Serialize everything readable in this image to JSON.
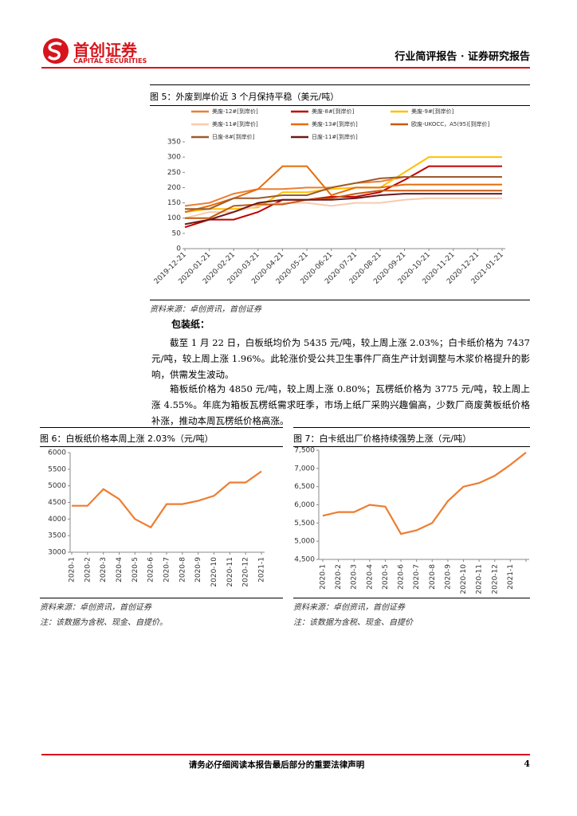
{
  "header": {
    "company": "首创证券",
    "company_en": "CAPITAL SECURITIES",
    "report_type": "行业简评报告 · 证券研究报告"
  },
  "body": {
    "heading": "包装纸：",
    "paragraphs": [
      "截至 1 月 22 日，白板纸均价为 5435 元/吨，较上周上涨 2.03%；白卡纸价格为 7437 元/吨，较上周上涨 1.96%。此轮涨价受公共卫生事件厂商生产计划调整与木浆价格提升的影响，供需发生波动。",
      "箱板纸价格为 4850 元/吨，较上周上涨 0.80%；瓦楞纸价格为 3775 元/吨，较上周上涨 4.55%。年底为箱板瓦楞纸需求旺季，市场上纸厂采购兴趣偏高，少数厂商废黄板纸价格补涨，推动本周瓦楞纸价格高涨。"
    ]
  },
  "footer": {
    "disclaimer": "请务必仔细阅读本报告最后部分的重要法律声明",
    "page": 4
  },
  "chart_data": [
    {
      "type": "line",
      "title": "图 5：外废到岸价近 3 个月保持平稳（美元/吨）",
      "source": "资料来源：卓创资讯，首创证券",
      "x": [
        "2019-12-21",
        "2020-01-21",
        "2020-02-21",
        "2020-03-21",
        "2020-04-21",
        "2020-05-21",
        "2020-06-21",
        "2020-07-21",
        "2020-08-21",
        "2020-09-21",
        "2020-10-21",
        "2020-11-21",
        "2020-12-21",
        "2021-01-21"
      ],
      "ylim": [
        0,
        350
      ],
      "yticks": [
        0,
        50,
        100,
        150,
        200,
        250,
        300,
        350
      ],
      "series": [
        {
          "name": "美废-12#[到岸价]",
          "color": "#ED7D31",
          "values": [
            140,
            150,
            180,
            195,
            195,
            200,
            200,
            215,
            220,
            235,
            235,
            235,
            235,
            235
          ]
        },
        {
          "name": "美废-8#[到岸价]",
          "color": "#C00000",
          "values": [
            70,
            95,
            95,
            120,
            160,
            160,
            170,
            170,
            185,
            225,
            270,
            270,
            270,
            270
          ]
        },
        {
          "name": "美废-9#[到岸价]",
          "color": "#FFC000",
          "values": [
            120,
            130,
            130,
            135,
            185,
            185,
            195,
            200,
            200,
            250,
            300,
            300,
            300,
            300
          ]
        },
        {
          "name": "美废-11#[到岸价]",
          "color": "#F8CBAD",
          "values": [
            100,
            120,
            120,
            140,
            150,
            150,
            140,
            150,
            150,
            160,
            165,
            165,
            165,
            165
          ]
        },
        {
          "name": "美废-13#[到岸价]",
          "color": "#E46C0A",
          "values": [
            120,
            140,
            165,
            195,
            270,
            270,
            175,
            200,
            200,
            210,
            210,
            210,
            210,
            210
          ]
        },
        {
          "name": "欧废-UKOCC，A5(95)[到岸价]",
          "color": "#C55A11",
          "values": [
            100,
            100,
            140,
            145,
            145,
            160,
            165,
            180,
            190,
            190,
            190,
            190,
            190,
            190
          ]
        },
        {
          "name": "日废-8#[到岸价]",
          "color": "#9C5B2C",
          "values": [
            130,
            130,
            165,
            165,
            175,
            175,
            200,
            215,
            230,
            235,
            235,
            235,
            235,
            235
          ]
        },
        {
          "name": "日废-11#[到岸价]",
          "color": "#6B1A1A",
          "values": [
            80,
            95,
            120,
            150,
            160,
            160,
            160,
            165,
            175,
            180,
            180,
            180,
            180,
            180
          ]
        }
      ]
    },
    {
      "type": "line",
      "title": "图 6：白板纸价格本周上涨 2.03%（元/吨）",
      "source": "资料来源：卓创资讯，首创证券",
      "note": "注：该数据为含税、现金、自提价。",
      "categories": [
        "2020-1",
        "2020-2",
        "2020-3",
        "2020-4",
        "2020-5",
        "2020-6",
        "2020-7",
        "2020-8",
        "2020-9",
        "2020-10",
        "2020-11",
        "2020-12",
        "2021-1"
      ],
      "ylim": [
        3000,
        6000
      ],
      "yticks": [
        3000,
        3500,
        4000,
        4500,
        5000,
        5500,
        6000
      ],
      "series": [
        {
          "name": "白板纸",
          "color": "#ED7D31",
          "values": [
            4400,
            4400,
            4900,
            4600,
            4000,
            3750,
            4450,
            4450,
            4550,
            4700,
            5100,
            5100,
            5435
          ]
        }
      ]
    },
    {
      "type": "line",
      "title": "图 7：白卡纸出厂价格持续强势上涨（元/吨）",
      "source": "资料来源：卓创资讯，首创证券",
      "note": "注：该数据为含税、现金、自提价",
      "categories": [
        "2020-1",
        "2020-2",
        "2020-3",
        "2020-4",
        "2020-5",
        "2020-6",
        "2020-7",
        "2020-8",
        "2020-9",
        "2020-10",
        "2020-11",
        "2020-12",
        "2021-1",
        null
      ],
      "ylim": [
        4500,
        7500
      ],
      "yticks": [
        {
          "value": 4500,
          "label": "4,500"
        },
        {
          "value": 5000,
          "label": "5,000"
        },
        {
          "value": 5500,
          "label": "5,500"
        },
        {
          "value": 6000,
          "label": "6,000"
        },
        {
          "value": 6500,
          "label": "6,500"
        },
        {
          "value": 7000,
          "label": "7,000"
        },
        {
          "value": 7500,
          "label": "7,500"
        }
      ],
      "series": [
        {
          "name": "白卡纸",
          "color": "#ED7D31",
          "values": [
            5700,
            5800,
            5800,
            6000,
            5950,
            5200,
            5300,
            5500,
            6100,
            6500,
            6600,
            6800,
            7100,
            7437
          ]
        }
      ]
    }
  ]
}
